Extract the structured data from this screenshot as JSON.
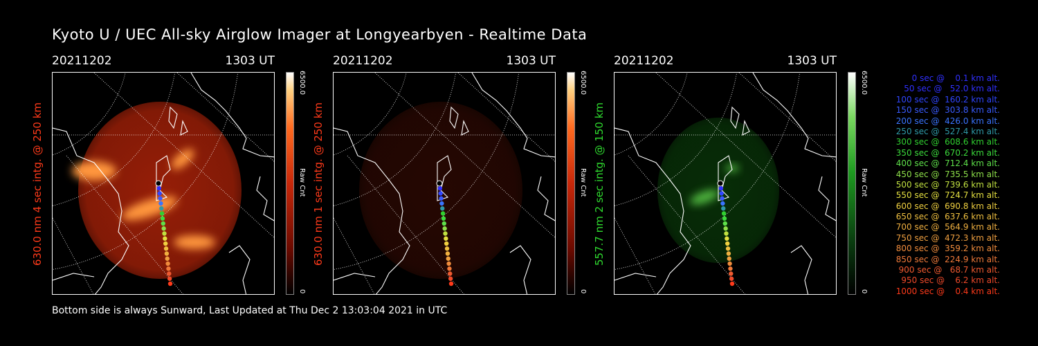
{
  "title": "Kyoto U / UEC All-sky Airglow Imager at Longyearbyen - Realtime Data",
  "footer": "Bottom side is always Sunward, Last Updated at Thu Dec  2 13:03:04 2021 in UTC",
  "panels": [
    {
      "date": "20211202",
      "time": "1303 UT",
      "ylabel": "630.0 nm 4 sec intg. @ 250 km",
      "label_color": "#ff3a1a",
      "cb_max": "6500.0",
      "cb_min": "0",
      "cb_unit": "Raw Cnt",
      "colormap": "red",
      "intensity": 1.0
    },
    {
      "date": "20211202",
      "time": "1303 UT",
      "ylabel": "630.0 nm 1 sec intg. @ 250 km",
      "label_color": "#ff3a1a",
      "cb_max": "6500.0",
      "cb_min": "0",
      "cb_unit": "Raw Cnt",
      "colormap": "red",
      "intensity": 0.25
    },
    {
      "date": "20211202",
      "time": "1303 UT",
      "ylabel": "557.7 nm 2 sec intg. @ 150 km",
      "label_color": "#2fdc2f",
      "cb_max": "6500.0",
      "cb_min": "0",
      "cb_unit": "Raw Cnt",
      "colormap": "green",
      "intensity": 0.5
    }
  ],
  "legend": [
    {
      "text": "   0 sec @    0.1 km alt.",
      "color": "#3030ff"
    },
    {
      "text": "  50 sec @   52.0 km alt.",
      "color": "#3030ff"
    },
    {
      "text": " 100 sec @  160.2 km alt.",
      "color": "#3046ff"
    },
    {
      "text": " 150 sec @  303.8 km alt.",
      "color": "#3a5cff"
    },
    {
      "text": " 200 sec @  426.0 km alt.",
      "color": "#3a74ff"
    },
    {
      "text": " 250 sec @  527.4 km alt.",
      "color": "#2f9aa8"
    },
    {
      "text": " 300 sec @  608.6 km alt.",
      "color": "#30d030"
    },
    {
      "text": " 350 sec @  670.2 km alt.",
      "color": "#3cdc3c"
    },
    {
      "text": " 400 sec @  712.4 km alt.",
      "color": "#5ee04a"
    },
    {
      "text": " 450 sec @  735.5 km alt.",
      "color": "#8ee04a"
    },
    {
      "text": " 500 sec @  739.6 km alt.",
      "color": "#c0e040"
    },
    {
      "text": " 550 sec @  724.7 km alt.",
      "color": "#e4e040"
    },
    {
      "text": " 600 sec @  690.8 km alt.",
      "color": "#f0d040"
    },
    {
      "text": " 650 sec @  637.6 km alt.",
      "color": "#f0c040"
    },
    {
      "text": " 700 sec @  564.9 km alt.",
      "color": "#f0b040"
    },
    {
      "text": " 750 sec @  472.3 km alt.",
      "color": "#f0a040"
    },
    {
      "text": " 800 sec @  359.2 km alt.",
      "color": "#f08c3c"
    },
    {
      "text": " 850 sec @  224.9 km alt.",
      "color": "#f07a3a"
    },
    {
      "text": " 900 sec @   68.7 km alt.",
      "color": "#f05a30"
    },
    {
      "text": " 950 sec @    6.2 km alt.",
      "color": "#f04a2a"
    },
    {
      "text": "1000 sec @    0.4 km alt.",
      "color": "#ff3a1a"
    }
  ]
}
